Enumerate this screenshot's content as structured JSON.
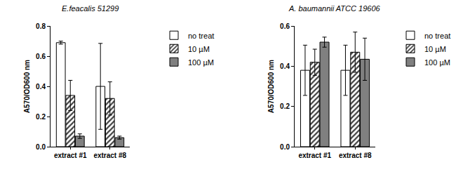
{
  "chart_data": [
    {
      "type": "bar",
      "title": "E.feacalis 51299",
      "y_label": "A570/OD600 nm",
      "categories": [
        "extract #1",
        "extract #8"
      ],
      "ylim": [
        0,
        0.8
      ],
      "yticks": [
        {
          "value": 0,
          "label": "0.0"
        },
        0.2,
        0.4,
        0.6,
        0.8
      ],
      "grid": false,
      "legend": "right",
      "series": [
        {
          "name": "no treat",
          "color": "#ffffff",
          "marker": "solid",
          "values": [
            0.69,
            0.4
          ],
          "errors": [
            0.01,
            0.285
          ]
        },
        {
          "name": "10 µM",
          "color": "#404040",
          "marker": "hatch",
          "values": [
            0.34,
            0.32
          ],
          "errors": [
            0.1,
            0.11
          ]
        },
        {
          "name": "100 µM",
          "color": "#808080",
          "marker": "solid",
          "values": [
            0.07,
            0.06
          ],
          "errors": [
            0.015,
            0.01
          ]
        }
      ]
    },
    {
      "type": "bar",
      "title": "A. baumannii ATCC 19606",
      "y_label": "A570/OD600 nm",
      "categories": [
        "extract #1",
        "extract #8"
      ],
      "ylim": [
        0,
        0.6
      ],
      "yticks": [
        {
          "value": 0,
          "label": "0.0"
        },
        0.2,
        0.4,
        0.6
      ],
      "grid": false,
      "legend": "right",
      "series": [
        {
          "name": "no treat",
          "color": "#ffffff",
          "marker": "solid",
          "values": [
            0.38,
            0.38
          ],
          "errors": [
            0.125,
            0.125
          ]
        },
        {
          "name": "10 µM",
          "color": "#404040",
          "marker": "hatch",
          "values": [
            0.42,
            0.47
          ],
          "errors": [
            0.065,
            0.1
          ]
        },
        {
          "name": "100 µM",
          "color": "#808080",
          "marker": "solid",
          "values": [
            0.52,
            0.435
          ],
          "errors": [
            0.025,
            0.105
          ]
        }
      ]
    }
  ]
}
